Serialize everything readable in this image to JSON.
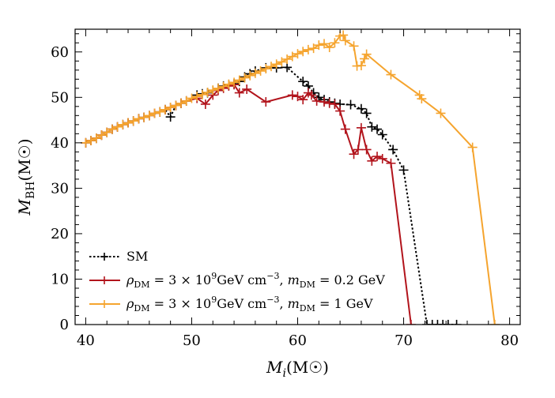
{
  "chart_data": {
    "type": "line",
    "xlabel": "Mi(M☉)",
    "ylabel": "MBH(M☉)",
    "xlim": [
      39,
      81
    ],
    "ylim": [
      0,
      65
    ],
    "xticks": [
      40,
      50,
      60,
      70,
      80
    ],
    "yticks": [
      0,
      10,
      20,
      30,
      40,
      50,
      60
    ],
    "grid": false,
    "legend_position": "bottom-left",
    "series": [
      {
        "name": "SM",
        "color": "#000000",
        "dash": "dotted",
        "marker": "plus",
        "points": [
          [
            40,
            40
          ],
          [
            40.5,
            40.5
          ],
          [
            41,
            41
          ],
          [
            41.5,
            41.7
          ],
          [
            42,
            42.3
          ],
          [
            42.5,
            43
          ],
          [
            43,
            43.5
          ],
          [
            43.5,
            44
          ],
          [
            44,
            44.4
          ],
          [
            44.5,
            44.8
          ],
          [
            45,
            45.3
          ],
          [
            45.5,
            45.6
          ],
          [
            46,
            46
          ],
          [
            47,
            46.8
          ],
          [
            47.5,
            47.3
          ],
          [
            48,
            45.7
          ],
          [
            48.5,
            48.2
          ],
          [
            49,
            48.7
          ],
          [
            49.5,
            49.2
          ],
          [
            50.5,
            50.5
          ],
          [
            51,
            50.8
          ],
          [
            51.5,
            51
          ],
          [
            52,
            51.5
          ],
          [
            52.5,
            52
          ],
          [
            53,
            52.5
          ],
          [
            53.5,
            52.7
          ],
          [
            54,
            53
          ],
          [
            54.5,
            53.5
          ],
          [
            55,
            54.5
          ],
          [
            55.5,
            55.2
          ],
          [
            56,
            55.8
          ],
          [
            57,
            56.5
          ],
          [
            58,
            56.5
          ],
          [
            59,
            56.6
          ],
          [
            60.5,
            53.5
          ],
          [
            61,
            52.5
          ],
          [
            61.5,
            51
          ],
          [
            62,
            50
          ],
          [
            62.5,
            49.5
          ],
          [
            63,
            49
          ],
          [
            63.5,
            48.7
          ],
          [
            64,
            48.5
          ],
          [
            65,
            48.4
          ],
          [
            66,
            47.5
          ],
          [
            66.5,
            46.5
          ],
          [
            67,
            43.5
          ],
          [
            67.5,
            43
          ],
          [
            68,
            41.8
          ],
          [
            69,
            38.5
          ],
          [
            70,
            34
          ],
          [
            72.2,
            0
          ],
          [
            72.7,
            0
          ],
          [
            73.2,
            0
          ],
          [
            73.7,
            0
          ],
          [
            74.2,
            0
          ],
          [
            75,
            0
          ]
        ]
      },
      {
        "name": "ρDM = 3 × 10⁹ GeV cm⁻³, mDM = 0.2 GeV",
        "color": "#b2141c",
        "dash": "solid",
        "marker": "plus",
        "points": [
          [
            40,
            40
          ],
          [
            40.5,
            40.5
          ],
          [
            41,
            41
          ],
          [
            41.5,
            41.7
          ],
          [
            42,
            42.3
          ],
          [
            42.5,
            43
          ],
          [
            43,
            43.5
          ],
          [
            43.5,
            44
          ],
          [
            44,
            44.4
          ],
          [
            44.5,
            44.8
          ],
          [
            45,
            45.3
          ],
          [
            45.5,
            45.6
          ],
          [
            46,
            46
          ],
          [
            46.5,
            46.5
          ],
          [
            47,
            46.8
          ],
          [
            47.5,
            47.3
          ],
          [
            48,
            47.8
          ],
          [
            48.5,
            48.2
          ],
          [
            49,
            48.7
          ],
          [
            49.5,
            49.2
          ],
          [
            50.5,
            49.8
          ],
          [
            51.3,
            48.5
          ],
          [
            52,
            50.5
          ],
          [
            52.5,
            51.5
          ],
          [
            53,
            52
          ],
          [
            53.5,
            52.5
          ],
          [
            54,
            52.8
          ],
          [
            54.5,
            51
          ],
          [
            55.2,
            51.8
          ],
          [
            57,
            49
          ],
          [
            59.5,
            50.5
          ],
          [
            60,
            50.2
          ],
          [
            60.5,
            49.5
          ],
          [
            61,
            51
          ],
          [
            61.3,
            50.5
          ],
          [
            61.8,
            49.2
          ],
          [
            62.5,
            49
          ],
          [
            63,
            48.7
          ],
          [
            63.5,
            48.5
          ],
          [
            64,
            47
          ],
          [
            64.5,
            43
          ],
          [
            65.3,
            37.5
          ],
          [
            65.7,
            38.5
          ],
          [
            66,
            43.3
          ],
          [
            66.5,
            38.5
          ],
          [
            67,
            36
          ],
          [
            67.5,
            37
          ],
          [
            68,
            36.5
          ],
          [
            68.8,
            35.5
          ],
          [
            70.7,
            0
          ]
        ]
      },
      {
        "name": "ρDM = 3 × 10⁹ GeV cm⁻³, mDM = 1 GeV",
        "color": "#f5a42e",
        "dash": "solid",
        "marker": "plus",
        "points": [
          [
            40,
            40
          ],
          [
            40.5,
            40.5
          ],
          [
            41,
            41
          ],
          [
            41.5,
            41.7
          ],
          [
            42,
            42.3
          ],
          [
            42.5,
            43
          ],
          [
            43,
            43.5
          ],
          [
            43.5,
            44
          ],
          [
            44,
            44.4
          ],
          [
            44.5,
            44.8
          ],
          [
            45,
            45.3
          ],
          [
            45.5,
            45.6
          ],
          [
            46,
            46
          ],
          [
            46.5,
            46.5
          ],
          [
            47,
            46.8
          ],
          [
            47.5,
            47.3
          ],
          [
            48,
            47.8
          ],
          [
            48.5,
            48.2
          ],
          [
            49,
            48.7
          ],
          [
            49.5,
            49.2
          ],
          [
            50,
            49.8
          ],
          [
            50.5,
            50.2
          ],
          [
            51,
            50.6
          ],
          [
            51.5,
            51.1
          ],
          [
            52,
            51.6
          ],
          [
            52.5,
            52
          ],
          [
            53,
            52.4
          ],
          [
            53.5,
            52.9
          ],
          [
            54,
            53.3
          ],
          [
            54.5,
            53.8
          ],
          [
            55,
            54.3
          ],
          [
            55.5,
            54.8
          ],
          [
            56,
            55.3
          ],
          [
            56.5,
            55.8
          ],
          [
            57,
            56.3
          ],
          [
            57.5,
            56.8
          ],
          [
            58,
            57.3
          ],
          [
            58.5,
            57.8
          ],
          [
            59,
            58.4
          ],
          [
            59.5,
            59
          ],
          [
            60,
            59.6
          ],
          [
            60.5,
            60.1
          ],
          [
            61,
            60.5
          ],
          [
            61.5,
            60.8
          ],
          [
            62,
            61.5
          ],
          [
            62.5,
            61.8
          ],
          [
            63,
            61
          ],
          [
            63.5,
            62
          ],
          [
            64,
            63.5
          ],
          [
            64.3,
            63.7
          ],
          [
            64.5,
            62.5
          ],
          [
            65.3,
            61.3
          ],
          [
            65.6,
            56.9
          ],
          [
            66,
            57
          ],
          [
            66.3,
            58.5
          ],
          [
            66.5,
            59.5
          ],
          [
            68.8,
            55
          ],
          [
            71.5,
            50.5
          ],
          [
            71.7,
            49.7
          ],
          [
            73.5,
            46.5
          ],
          [
            76.5,
            39
          ],
          [
            78.6,
            0
          ]
        ]
      }
    ],
    "legend": [
      {
        "series": 0,
        "label_parts": [
          "SM"
        ]
      },
      {
        "series": 1,
        "label_parts": [
          "ρ",
          "DM",
          " = 3 × 10",
          "9",
          "GeV cm",
          "−3",
          ", ",
          "m",
          "DM",
          " = 0.2 GeV"
        ]
      },
      {
        "series": 2,
        "label_parts": [
          "ρ",
          "DM",
          " = 3 × 10",
          "9",
          "GeV cm",
          "−3",
          ", ",
          "m",
          "DM",
          " = 1 GeV"
        ]
      }
    ]
  }
}
